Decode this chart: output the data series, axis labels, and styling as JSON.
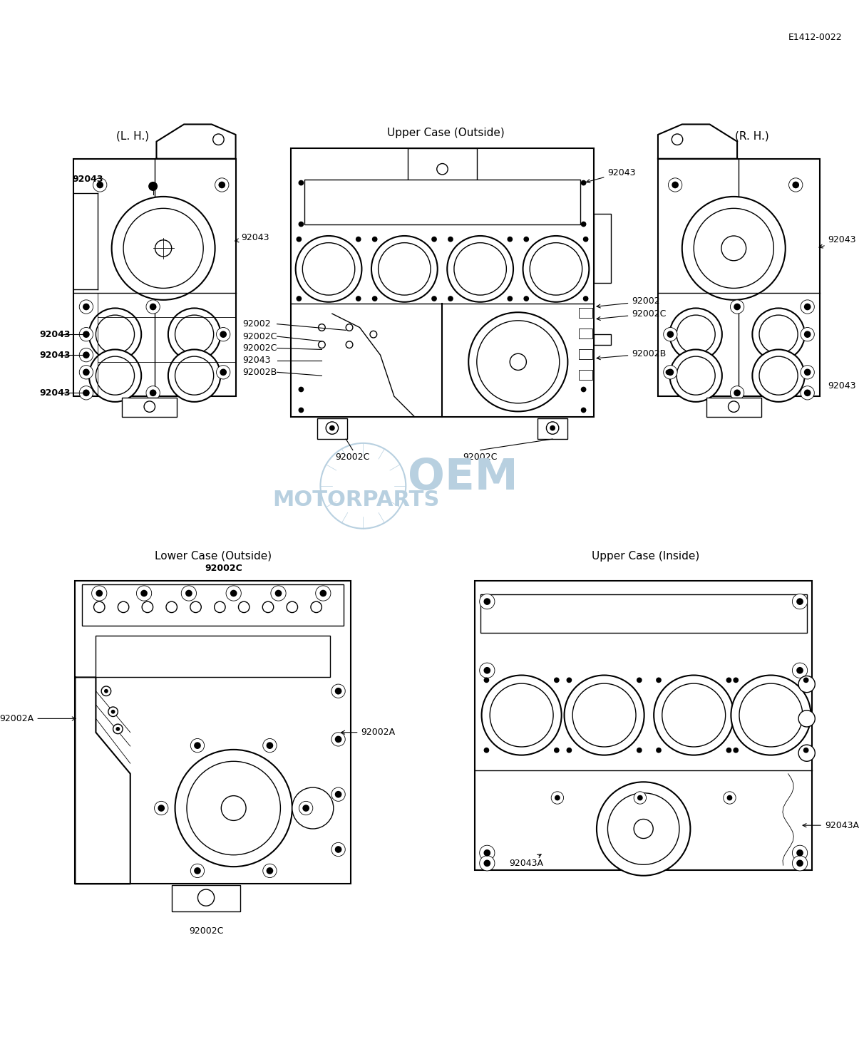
{
  "doc_id": "E1412-0022",
  "bg": "#ffffff",
  "lc": "#000000",
  "wm_color": "#b8d0e0",
  "labels": {
    "uco": "Upper Case (Outside)",
    "lco": "Lower Case (Outside)",
    "uci": "Upper Case (Inside)",
    "lh": "(L. H.)",
    "rh": "(R. H.)"
  },
  "fig_w": 12.12,
  "fig_h": 14.65,
  "dpi": 100
}
